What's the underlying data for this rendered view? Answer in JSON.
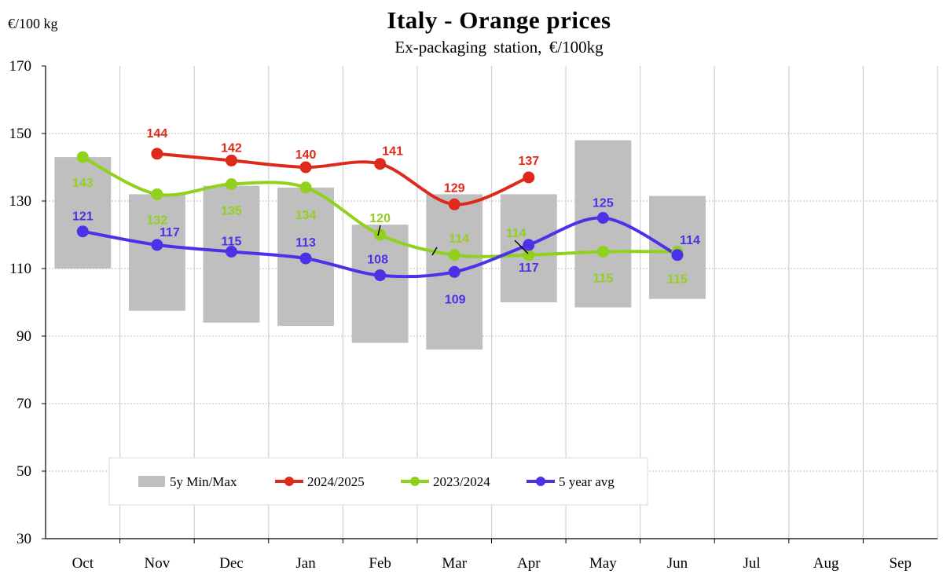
{
  "chart_data": {
    "type": "line",
    "title": "Italy  -  Orange prices",
    "subtitle": "Ex-packaging  station,  €/100kg",
    "ylabel": "€/100 kg",
    "ylim": [
      30,
      170
    ],
    "yticks": [
      30,
      50,
      70,
      90,
      110,
      130,
      150,
      170
    ],
    "categories": [
      "Oct",
      "Nov",
      "Dec",
      "Jan",
      "Feb",
      "Mar",
      "Apr",
      "May",
      "Jun",
      "Jul",
      "Aug",
      "Sep"
    ],
    "range_band": {
      "name": "5y Min/Max",
      "color": "#bfbfbf",
      "min": [
        110,
        97.5,
        94,
        93,
        88,
        86,
        100,
        98.5,
        101,
        null,
        null,
        null
      ],
      "max": [
        143,
        132,
        134.5,
        134,
        123,
        132,
        132,
        148,
        131.5,
        null,
        null,
        null
      ]
    },
    "series": [
      {
        "name": "2024/2025",
        "color": "#dd2a1b",
        "values": [
          null,
          144,
          142,
          140,
          141,
          129,
          137,
          null,
          null,
          null,
          null,
          null
        ],
        "labels": [
          "",
          "144",
          "142",
          "140",
          "141",
          "129",
          "137",
          "",
          "",
          "",
          "",
          ""
        ]
      },
      {
        "name": "2023/2024",
        "color": "#92d01e",
        "values": [
          143,
          132,
          135,
          134,
          120,
          114,
          114,
          115,
          115,
          null,
          null,
          null
        ],
        "labels": [
          "143",
          "132",
          "135",
          "134",
          "120",
          "114",
          "114",
          "115",
          "115",
          "",
          "",
          ""
        ]
      },
      {
        "name": "5 year avg",
        "color": "#4b32e6",
        "values": [
          121,
          117,
          115,
          113,
          108,
          109,
          117,
          125,
          114,
          null,
          null,
          null
        ],
        "labels": [
          "121",
          "117",
          "115",
          "113",
          "108",
          "109",
          "117",
          "125",
          "114",
          "",
          "",
          ""
        ]
      }
    ],
    "grid": true,
    "legend_position": "bottom-left inside plot"
  }
}
